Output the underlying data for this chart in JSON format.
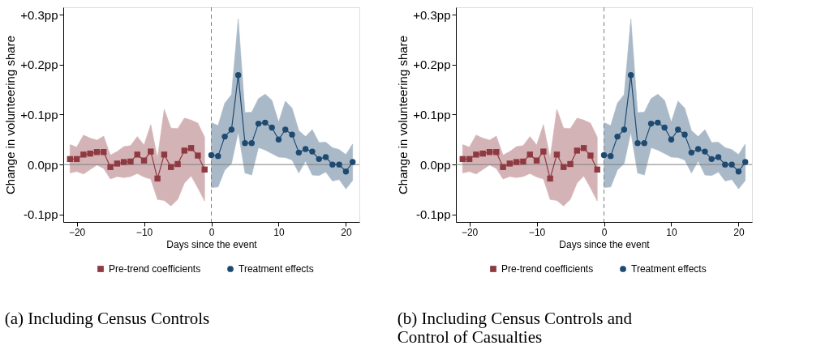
{
  "chart_data": [
    {
      "type": "line",
      "title": "(a) Including Census Controls",
      "xlabel": "Days since the event",
      "ylabel": "Change in volunteering share",
      "xlim": [
        -22,
        22
      ],
      "ylim": [
        -0.115,
        0.315
      ],
      "xticks": [
        -20,
        -10,
        0,
        10,
        20
      ],
      "yticks": [
        {
          "value": -0.1,
          "label": "-0.1pp"
        },
        {
          "value": 0,
          "label": "0.0pp"
        },
        {
          "value": 0.1,
          "label": "+0.1pp"
        },
        {
          "value": 0.2,
          "label": "+0.2pp"
        },
        {
          "value": 0.3,
          "label": "+0.3pp"
        }
      ],
      "legend": "bottom",
      "series": [
        {
          "name": "Pre-trend coefficients",
          "color": "#8f3a42",
          "marker": "square",
          "x": [
            -21,
            -20,
            -19,
            -18,
            -17,
            -16,
            -15,
            -14,
            -13,
            -12,
            -11,
            -10,
            -9,
            -8,
            -7,
            -6,
            -5,
            -4,
            -3,
            -2,
            -1
          ],
          "values": [
            0.011,
            0.011,
            0.02,
            0.022,
            0.025,
            0.025,
            -0.005,
            0.002,
            0.005,
            0.006,
            0.02,
            0.008,
            0.026,
            -0.028,
            0.02,
            -0.005,
            0.001,
            0.028,
            0.033,
            0.018,
            -0.01
          ],
          "upper": [
            0.04,
            0.035,
            0.059,
            0.053,
            0.049,
            0.057,
            0.019,
            0.026,
            0.036,
            0.038,
            0.056,
            0.039,
            0.08,
            0.013,
            0.111,
            0.073,
            0.072,
            0.093,
            0.089,
            0.083,
            0.055
          ],
          "lower": [
            -0.017,
            -0.014,
            -0.019,
            -0.01,
            -0.001,
            -0.008,
            -0.029,
            -0.024,
            -0.026,
            -0.024,
            -0.018,
            -0.025,
            -0.029,
            -0.07,
            -0.072,
            -0.083,
            -0.07,
            -0.037,
            -0.023,
            -0.047,
            -0.073
          ]
        },
        {
          "name": "Treatment effects",
          "color": "#1f4a70",
          "marker": "circle",
          "x": [
            0,
            1,
            2,
            3,
            4,
            5,
            6,
            7,
            8,
            9,
            10,
            11,
            12,
            13,
            14,
            15,
            16,
            17,
            18,
            19,
            20,
            21
          ],
          "values": [
            0.019,
            0.017,
            0.056,
            0.07,
            0.179,
            0.043,
            0.043,
            0.082,
            0.084,
            0.074,
            0.05,
            0.07,
            0.06,
            0.024,
            0.031,
            0.026,
            0.011,
            0.015,
            0.0,
            0.0,
            -0.014,
            0.005
          ],
          "upper": [
            0.084,
            0.078,
            0.123,
            0.14,
            0.292,
            0.104,
            0.105,
            0.132,
            0.141,
            0.129,
            0.085,
            0.127,
            0.113,
            0.068,
            0.056,
            0.07,
            0.044,
            0.045,
            0.034,
            0.03,
            0.02,
            0.041
          ],
          "lower": [
            -0.046,
            -0.045,
            -0.011,
            0.002,
            0.065,
            -0.017,
            -0.021,
            0.034,
            0.029,
            0.022,
            0.015,
            0.014,
            0.009,
            -0.017,
            0.007,
            -0.021,
            -0.022,
            -0.015,
            -0.033,
            -0.03,
            -0.049,
            -0.032
          ]
        }
      ],
      "ref_lines": [
        {
          "axis": "y",
          "value": 0,
          "color": "#7f7f7f",
          "line_style": "solid"
        },
        {
          "axis": "x",
          "value": 0,
          "color": "#7f7f7f",
          "line_style": "dashed"
        }
      ]
    },
    {
      "type": "line",
      "title": "(b) Including Census Controls and Control of Casualties",
      "xlabel": "Days since the event",
      "ylabel": "Change in volunteering share",
      "xlim": [
        -22,
        22
      ],
      "ylim": [
        -0.115,
        0.315
      ],
      "xticks": [
        -20,
        -10,
        0,
        10,
        20
      ],
      "yticks": [
        {
          "value": -0.1,
          "label": "-0.1pp"
        },
        {
          "value": 0,
          "label": "0.0pp"
        },
        {
          "value": 0.1,
          "label": "+0.1pp"
        },
        {
          "value": 0.2,
          "label": "+0.2pp"
        },
        {
          "value": 0.3,
          "label": "+0.3pp"
        }
      ],
      "legend": "bottom",
      "series": [
        {
          "name": "Pre-trend coefficients",
          "color": "#8f3a42",
          "marker": "square",
          "x": [
            -21,
            -20,
            -19,
            -18,
            -17,
            -16,
            -15,
            -14,
            -13,
            -12,
            -11,
            -10,
            -9,
            -8,
            -7,
            -6,
            -5,
            -4,
            -3,
            -2,
            -1
          ],
          "values": [
            0.011,
            0.011,
            0.02,
            0.022,
            0.025,
            0.025,
            -0.005,
            0.002,
            0.005,
            0.006,
            0.02,
            0.008,
            0.026,
            -0.028,
            0.02,
            -0.005,
            0.001,
            0.028,
            0.033,
            0.018,
            -0.01
          ],
          "upper": [
            0.04,
            0.035,
            0.059,
            0.053,
            0.049,
            0.057,
            0.019,
            0.026,
            0.036,
            0.038,
            0.056,
            0.039,
            0.08,
            0.013,
            0.111,
            0.073,
            0.072,
            0.093,
            0.089,
            0.083,
            0.055
          ],
          "lower": [
            -0.017,
            -0.014,
            -0.019,
            -0.01,
            -0.001,
            -0.008,
            -0.029,
            -0.024,
            -0.026,
            -0.024,
            -0.018,
            -0.025,
            -0.029,
            -0.07,
            -0.072,
            -0.083,
            -0.07,
            -0.037,
            -0.023,
            -0.047,
            -0.073
          ]
        },
        {
          "name": "Treatment effects",
          "color": "#1f4a70",
          "marker": "circle",
          "x": [
            0,
            1,
            2,
            3,
            4,
            5,
            6,
            7,
            8,
            9,
            10,
            11,
            12,
            13,
            14,
            15,
            16,
            17,
            18,
            19,
            20,
            21
          ],
          "values": [
            0.019,
            0.017,
            0.056,
            0.07,
            0.179,
            0.043,
            0.043,
            0.082,
            0.084,
            0.074,
            0.05,
            0.07,
            0.06,
            0.024,
            0.031,
            0.026,
            0.011,
            0.015,
            0.0,
            0.0,
            -0.014,
            0.005
          ],
          "upper": [
            0.084,
            0.078,
            0.123,
            0.14,
            0.292,
            0.104,
            0.105,
            0.132,
            0.141,
            0.129,
            0.085,
            0.127,
            0.113,
            0.068,
            0.056,
            0.07,
            0.044,
            0.045,
            0.034,
            0.03,
            0.02,
            0.041
          ],
          "lower": [
            -0.046,
            -0.045,
            -0.011,
            0.002,
            0.065,
            -0.017,
            -0.021,
            0.034,
            0.029,
            0.022,
            0.015,
            0.014,
            0.009,
            -0.017,
            0.007,
            -0.021,
            -0.022,
            -0.015,
            -0.033,
            -0.03,
            -0.049,
            -0.032
          ]
        }
      ],
      "ref_lines": [
        {
          "axis": "y",
          "value": 0,
          "color": "#7f7f7f",
          "line_style": "solid"
        },
        {
          "axis": "x",
          "value": 0,
          "color": "#7f7f7f",
          "line_style": "dashed"
        }
      ]
    }
  ]
}
